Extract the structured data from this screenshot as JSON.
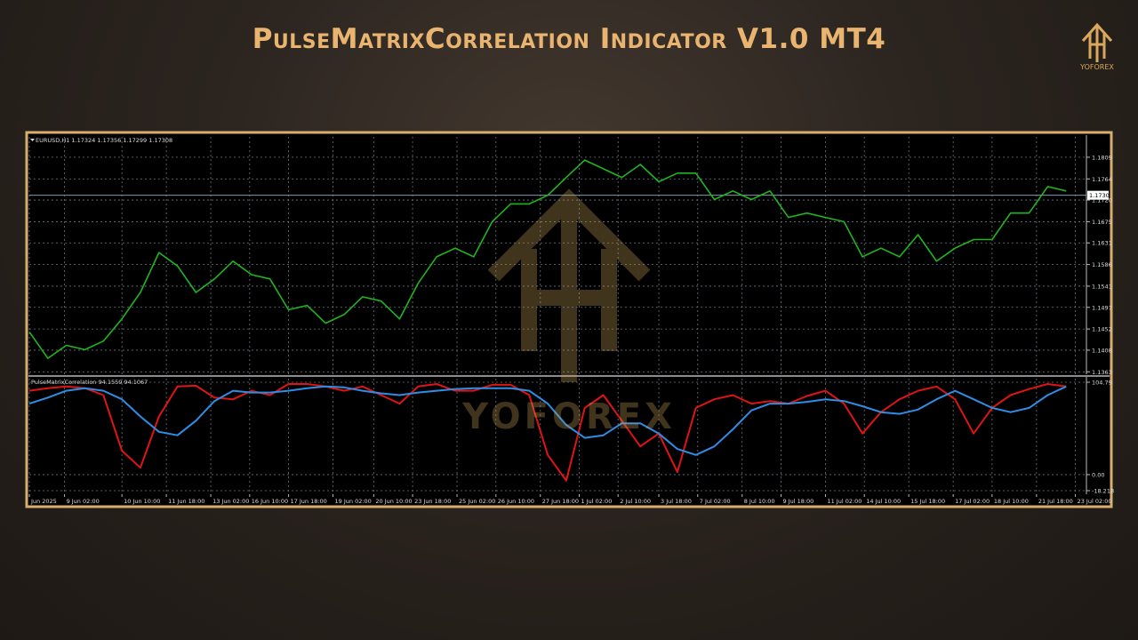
{
  "header": {
    "title": "PulseMatrixCorrelation Indicator V1.0 MT4",
    "brand": "YOFOREX"
  },
  "watermark": "YOFOREX",
  "chart_data": [
    {
      "type": "line",
      "title": "EURUSD,H1 1.17324 1.17356 1.17299 1.17308",
      "xlim": [
        0,
        57
      ],
      "ylim": [
        1.1358,
        1.1855
      ],
      "yticks": [
        1.1809,
        1.1764,
        {
          "value": 1.172,
          "label": "1.1720"
        },
        1.1675,
        1.1631,
        1.1586,
        1.1541,
        1.1497,
        1.1452,
        1.1408,
        1.1363
      ],
      "current_price": {
        "value": 1.173,
        "label": "1.1730"
      },
      "grid": true,
      "series": [
        {
          "name": "EURUSD,H1",
          "color": "#1fb51f",
          "values": [
            1.1446,
            1.1391,
            1.1418,
            1.1409,
            1.1427,
            1.1473,
            1.1528,
            1.1611,
            1.1583,
            1.1528,
            1.1556,
            1.1593,
            1.1565,
            1.1556,
            1.1492,
            1.1501,
            1.1464,
            1.1482,
            1.1519,
            1.151,
            1.1473,
            1.1547,
            1.1602,
            1.162,
            1.1602,
            1.1675,
            1.1712,
            1.1712,
            1.173,
            1.1767,
            1.1803,
            1.1785,
            1.1767,
            1.1794,
            1.1758,
            1.1776,
            1.1776,
            1.1721,
            1.1739,
            1.1721,
            1.1739,
            1.1684,
            1.1693,
            1.1684,
            1.1675,
            1.1602,
            1.162,
            1.1602,
            1.1648,
            1.1593,
            1.162,
            1.1638,
            1.1638,
            1.1693,
            1.1693,
            1.1748,
            1.1739
          ]
        }
      ]
    },
    {
      "type": "line",
      "title": "PulseMatrixCorrelation 94.1559 94.1067",
      "xlim": [
        0,
        57
      ],
      "ylim": [
        -18.218,
        104.79
      ],
      "yticks": [
        104.79,
        {
          "value": 0,
          "label": "0.00"
        },
        -18.218
      ],
      "xticks": [
        {
          "value": 0,
          "label": "Jun 2025"
        },
        {
          "value": 1.9,
          "label": "9 Jun 02:00"
        },
        {
          "value": 5.0,
          "label": "10 Jun 10:00"
        },
        {
          "value": 7.4,
          "label": "11 Jun 18:00"
        },
        {
          "value": 9.8,
          "label": "13 Jun 02:00"
        },
        {
          "value": 11.9,
          "label": "16 Jun 10:00"
        },
        {
          "value": 14.0,
          "label": "17 Jun 18:00"
        },
        {
          "value": 16.4,
          "label": "19 Jun 02:00"
        },
        {
          "value": 18.6,
          "label": "20 Jun 10:00"
        },
        {
          "value": 20.7,
          "label": "23 Jun 18:00"
        },
        {
          "value": 23.1,
          "label": "25 Jun 02:00"
        },
        {
          "value": 25.2,
          "label": "26 Jun 10:00"
        },
        {
          "value": 27.6,
          "label": "27 Jun 18:00"
        },
        {
          "value": 29.7,
          "label": "1 Jul 02:00"
        },
        {
          "value": 31.8,
          "label": "2 Jul 10:00"
        },
        {
          "value": 34.0,
          "label": "3 Jul 18:00"
        },
        {
          "value": 36.1,
          "label": "7 Jul 02:00"
        },
        {
          "value": 38.5,
          "label": "8 Jul 10:00"
        },
        {
          "value": 40.6,
          "label": "9 Jul 18:00"
        },
        {
          "value": 43.0,
          "label": "11 Jul 02:00"
        },
        {
          "value": 45.1,
          "label": "14 Jul 10:00"
        },
        {
          "value": 47.5,
          "label": "15 Jul 18:00"
        },
        {
          "value": 49.9,
          "label": "17 Jul 02:00"
        },
        {
          "value": 52.0,
          "label": "18 Jul 10:00"
        },
        {
          "value": 54.4,
          "label": "21 Jul 18:00"
        },
        {
          "value": 56.5,
          "label": "23 Jul 02:00"
        }
      ],
      "grid": true,
      "series": [
        {
          "name": "Red line",
          "color": "#e01414",
          "values": [
            95.1,
            98.0,
            99.9,
            98.0,
            90.2,
            27.2,
            7.8,
            66.0,
            99.9,
            100.9,
            87.3,
            85.4,
            95.1,
            90.2,
            102.8,
            102.8,
            99.9,
            95.1,
            99.9,
            90.2,
            80.5,
            99.9,
            102.8,
            95.1,
            95.1,
            101.9,
            101.9,
            90.2,
            22.3,
            -6.8,
            75.7,
            90.2,
            61.1,
            32.0,
            46.6,
            2.9,
            75.7,
            85.4,
            90.2,
            80.5,
            83.4,
            80.5,
            89.2,
            95.1,
            80.5,
            46.6,
            70.8,
            85.4,
            95.1,
            99.9,
            85.4,
            46.6,
            75.7,
            90.2,
            97.0,
            102.8,
            99.9
          ]
        },
        {
          "name": "Blue line",
          "color": "#2e8ee6",
          "values": [
            80.5,
            87.3,
            95.1,
            98.0,
            95.1,
            85.4,
            66.0,
            48.5,
            44.6,
            61.1,
            83.4,
            95.1,
            93.1,
            93.1,
            95.1,
            98.0,
            99.9,
            98.9,
            95.1,
            92.2,
            90.2,
            93.1,
            95.1,
            97.0,
            98.0,
            98.0,
            98.0,
            95.1,
            80.5,
            56.3,
            41.7,
            44.6,
            58.2,
            58.2,
            46.6,
            29.1,
            22.3,
            32.0,
            51.4,
            72.8,
            80.5,
            80.5,
            82.5,
            85.4,
            83.4,
            77.6,
            70.8,
            68.9,
            73.7,
            85.4,
            95.1,
            85.4,
            75.7,
            70.8,
            75.7,
            90.2,
            99.9
          ]
        }
      ]
    }
  ]
}
